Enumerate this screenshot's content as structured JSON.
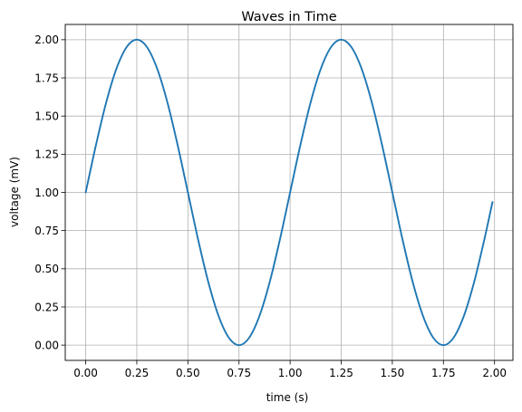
{
  "chart_data": {
    "type": "line",
    "title": "Waves in Time",
    "xlabel": "time (s)",
    "ylabel": "voltage (mV)",
    "xlim": [
      -0.1,
      2.09
    ],
    "ylim": [
      -0.1,
      2.1
    ],
    "xticks": [
      "0.00",
      "0.25",
      "0.50",
      "0.75",
      "1.00",
      "1.25",
      "1.50",
      "1.75",
      "2.00"
    ],
    "yticks": [
      "0.00",
      "0.25",
      "0.50",
      "0.75",
      "1.00",
      "1.25",
      "1.50",
      "1.75",
      "2.00"
    ],
    "grid": true,
    "series": [
      {
        "color": "#1f77b4",
        "x": [
          0.0,
          0.05,
          0.1,
          0.15,
          0.2,
          0.25,
          0.3,
          0.35,
          0.4,
          0.45,
          0.5,
          0.55,
          0.6,
          0.65,
          0.7,
          0.75,
          0.8,
          0.85,
          0.9,
          0.95,
          1.0,
          1.05,
          1.1,
          1.15,
          1.2,
          1.25,
          1.3,
          1.35,
          1.4,
          1.45,
          1.5,
          1.55,
          1.6,
          1.65,
          1.7,
          1.75,
          1.8,
          1.85,
          1.9,
          1.95,
          1.99
        ],
        "values": [
          1.0,
          1.309,
          1.588,
          1.809,
          1.951,
          2.0,
          1.951,
          1.809,
          1.588,
          1.309,
          1.0,
          0.691,
          0.412,
          0.191,
          0.049,
          0.0,
          0.049,
          0.191,
          0.412,
          0.691,
          1.0,
          1.309,
          1.588,
          1.809,
          1.951,
          2.0,
          1.951,
          1.809,
          1.588,
          1.309,
          1.0,
          0.691,
          0.412,
          0.191,
          0.049,
          0.0,
          0.049,
          0.191,
          0.412,
          0.691,
          0.937
        ]
      }
    ]
  }
}
